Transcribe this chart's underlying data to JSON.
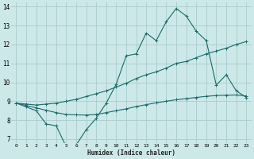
{
  "background_color": "#cce8e8",
  "grid_color": "#aacccc",
  "line_color": "#1a6b6b",
  "line1_x": [
    0,
    1,
    2,
    3,
    4,
    5,
    6,
    7,
    8,
    9,
    10,
    11,
    12,
    13,
    14,
    15,
    16,
    17,
    18,
    19,
    20,
    21,
    22,
    23
  ],
  "line1_y": [
    8.9,
    8.7,
    8.5,
    7.8,
    7.7,
    6.6,
    6.7,
    7.5,
    8.1,
    8.9,
    9.9,
    11.4,
    11.5,
    12.6,
    12.2,
    13.2,
    13.9,
    13.5,
    12.7,
    12.2,
    9.85,
    10.4,
    9.55,
    9.2
  ],
  "line2_x": [
    0,
    1,
    2,
    3,
    4,
    5,
    6,
    7,
    8,
    9,
    10,
    11,
    12,
    13,
    14,
    15,
    16,
    17,
    18,
    19,
    20,
    21,
    22,
    23
  ],
  "line2_y": [
    8.9,
    8.85,
    8.8,
    8.85,
    8.9,
    9.0,
    9.1,
    9.25,
    9.4,
    9.55,
    9.75,
    9.95,
    10.2,
    10.4,
    10.55,
    10.75,
    11.0,
    11.1,
    11.3,
    11.5,
    11.65,
    11.8,
    12.0,
    12.15
  ],
  "line3_x": [
    0,
    1,
    2,
    3,
    4,
    5,
    6,
    7,
    8,
    9,
    10,
    11,
    12,
    13,
    14,
    15,
    16,
    17,
    18,
    19,
    20,
    21,
    22,
    23
  ],
  "line3_y": [
    8.9,
    8.78,
    8.65,
    8.52,
    8.4,
    8.3,
    8.28,
    8.27,
    8.3,
    8.4,
    8.5,
    8.6,
    8.72,
    8.82,
    8.92,
    9.0,
    9.08,
    9.14,
    9.2,
    9.26,
    9.3,
    9.32,
    9.33,
    9.28
  ],
  "xlabel": "Humidex (Indice chaleur)",
  "xlim": [
    -0.5,
    23.5
  ],
  "ylim": [
    6.8,
    14.2
  ],
  "yticks": [
    7,
    8,
    9,
    10,
    11,
    12,
    13,
    14
  ],
  "xticks": [
    0,
    1,
    2,
    3,
    4,
    5,
    6,
    7,
    8,
    9,
    10,
    11,
    12,
    13,
    14,
    15,
    16,
    17,
    18,
    19,
    20,
    21,
    22,
    23
  ],
  "xtick_labels": [
    "0",
    "1",
    "2",
    "3",
    "4",
    "5",
    "6",
    "7",
    "8",
    "9",
    "10",
    "11",
    "12",
    "13",
    "14",
    "15",
    "16",
    "17",
    "18",
    "19",
    "20",
    "21",
    "22",
    "23"
  ]
}
